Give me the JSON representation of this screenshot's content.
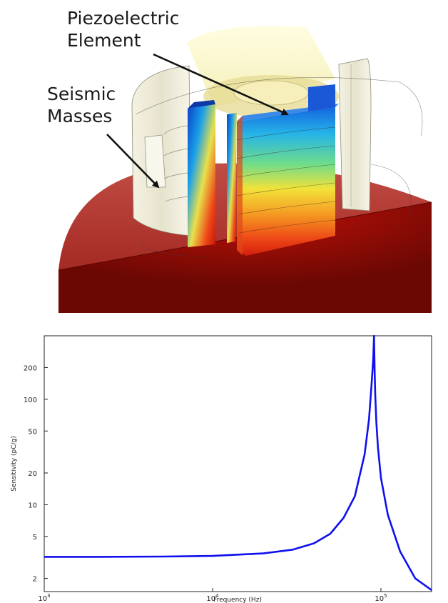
{
  "diagram": {
    "labels": {
      "piezo": [
        "Piezoelectric",
        "Element"
      ],
      "seismic": [
        "Seismic",
        "Masses"
      ]
    },
    "colors": {
      "base_dark": "#7a0a05",
      "base_top": "#b6423c",
      "shell": "#ece9d6",
      "arrow": "#111111"
    }
  },
  "chart_data": {
    "type": "line",
    "title": "",
    "xlabel": "Frequency (Hz)",
    "ylabel": "Sensitivity (pC/g)",
    "xscale": "log",
    "yscale": "log",
    "xlim": [
      1000,
      200000
    ],
    "ylim": [
      1.5,
      400
    ],
    "xticks": [
      1000,
      10000,
      100000
    ],
    "xtick_labels": [
      "10",
      "10",
      "10"
    ],
    "xtick_exponents": [
      "3",
      "4",
      "5"
    ],
    "yticks": [
      2,
      5,
      10,
      20,
      50,
      100,
      200
    ],
    "ytick_labels": [
      "2",
      "5",
      "10",
      "20",
      "50",
      "100",
      "200"
    ],
    "grid": false,
    "legend": "none",
    "series": [
      {
        "color": "#1010ee",
        "x": [
          1000,
          2000,
          5000,
          10000,
          20000,
          30000,
          40000,
          50000,
          60000,
          70000,
          80000,
          85000,
          88000,
          90000,
          91000,
          91800,
          92500,
          94000,
          96000,
          100000,
          110000,
          130000,
          160000,
          200000
        ],
        "y": [
          3.2,
          3.2,
          3.22,
          3.27,
          3.45,
          3.75,
          4.3,
          5.3,
          7.5,
          12,
          30,
          65,
          140,
          240,
          400,
          180,
          110,
          60,
          35,
          18,
          8,
          3.6,
          2.0,
          1.55
        ]
      }
    ]
  }
}
